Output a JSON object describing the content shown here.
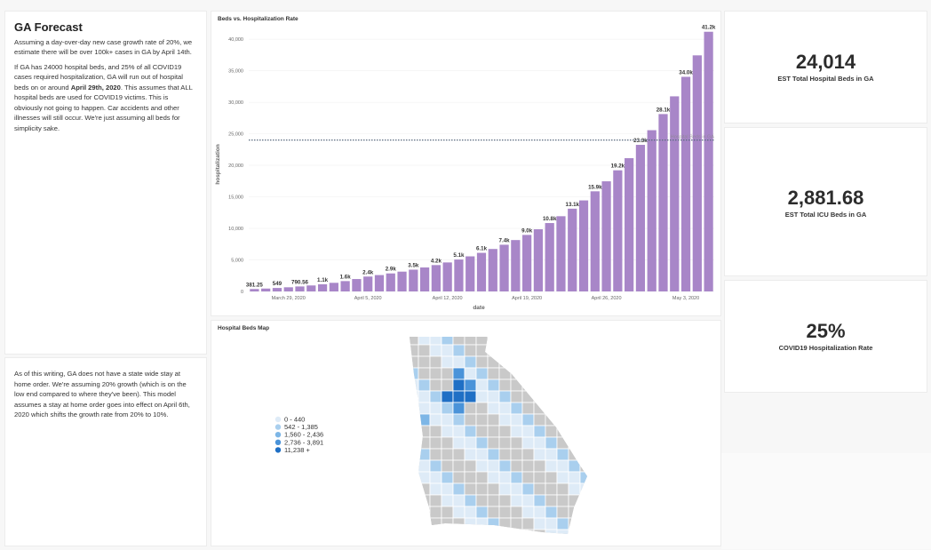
{
  "forecast": {
    "title": "GA Forecast",
    "paragraph1": "Assuming a day-over-day new case growth rate of 20%, we estimate there will be over 100k+ cases in GA by April 14th.",
    "paragraph2": [
      "If GA has 24000 hospital beds, and 25% of all COVID19 cases required hospitalization, GA will run out of hospital beds on or around ",
      "April 29th, 2020",
      ". This assumes that ALL hospital beds are used for COVID19 victims. This is obviously not going to happen. Car accidents and other illnesses will still occur. We're just assuming all beds for simplicity sake."
    ]
  },
  "note": {
    "paragraph": "As of this writing, GA does not have a state wide stay at home order. We're assuming 20% growth (which is on the low end compared to where they've been). This model assumes a stay at home order goes into effect on April 6th, 2020 which shifts the growth rate from 20% to 10%."
  },
  "chart_data": {
    "type": "bar",
    "title": "Beds vs. Hospitalization Rate",
    "x_label": "date",
    "y_label": "hospitalization",
    "color": "#a886c8",
    "categories": [
      null,
      null,
      null,
      "March 29, 2020",
      null,
      null,
      null,
      null,
      null,
      null,
      "April 5, 2020",
      null,
      null,
      null,
      null,
      null,
      null,
      "April 12, 2020",
      null,
      null,
      null,
      null,
      null,
      null,
      "April 19, 2020",
      null,
      null,
      null,
      null,
      null,
      null,
      "April 26, 2020",
      null,
      null,
      null,
      null,
      null,
      null,
      "May 3, 2020",
      null,
      null
    ],
    "values": [
      381.25,
      457.5,
      549,
      658.8,
      790.56,
      948.67,
      1138.41,
      1366.09,
      1639.31,
      1967.17,
      2360.6,
      2596.66,
      2856.33,
      3141.96,
      3456.15,
      3801.77,
      4181.95,
      4600.14,
      5060.16,
      5566.17,
      6122.79,
      6735.07,
      7408.58,
      8149.43,
      8964.38,
      9860.81,
      10846.89,
      11931.58,
      13124.73,
      14437.2,
      15880.93,
      17469.02,
      19215.93,
      21137.52,
      23251.27,
      25576.39,
      28134.03,
      30947.43,
      34042.17,
      37446.39,
      41191.03
    ],
    "value_labels": [
      "381.25",
      null,
      "549",
      null,
      "790.56",
      null,
      "1.1k",
      null,
      "1.6k",
      null,
      "2.4k",
      null,
      "2.9k",
      null,
      "3.5k",
      null,
      "4.2k",
      null,
      "5.1k",
      null,
      "6.1k",
      null,
      "7.4k",
      null,
      "9.0k",
      null,
      "10.8k",
      null,
      "13.1k",
      null,
      "15.9k",
      null,
      "19.2k",
      null,
      "23.3k",
      null,
      "28.1k",
      null,
      "34.0k",
      null,
      "41.2k"
    ],
    "ylim": [
      0,
      42000
    ],
    "yticks": [
      0,
      {
        "value": 5000,
        "label": "5,000"
      },
      {
        "value": 10000,
        "label": "10,000"
      },
      {
        "value": 15000,
        "label": "15,000"
      },
      {
        "value": 20000,
        "label": "20,000"
      },
      {
        "value": 25000,
        "label": "25,000"
      },
      {
        "value": 30000,
        "label": "30,000"
      },
      {
        "value": 35000,
        "label": "35,000"
      },
      {
        "value": 40000,
        "label": "40,000"
      }
    ],
    "reference_line": {
      "value": 24014,
      "label": "Hospital Beds in GA",
      "color": "#5b6b80"
    }
  },
  "map": {
    "title": "Hospital Beds Map",
    "legend": [
      {
        "label": "0 - 440",
        "color": "#deebf7"
      },
      {
        "label": "542 - 1,385",
        "color": "#a9cfee"
      },
      {
        "label": "1,560 - 2,436",
        "color": "#7db6e6"
      },
      {
        "label": "2,736 - 3,891",
        "color": "#4a93d9"
      },
      {
        "label": "11,238 +",
        "color": "#1f6fc5"
      }
    ]
  },
  "kpis": [
    {
      "value": "24,014",
      "label": "EST Total Hospital Beds in GA"
    },
    {
      "value": "2,881.68",
      "label": "EST Total ICU Beds in GA"
    },
    {
      "value": "25%",
      "label": "COVID19 Hospitalization Rate"
    }
  ]
}
